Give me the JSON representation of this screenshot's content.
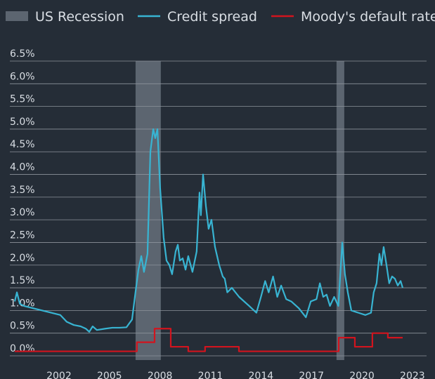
{
  "chart_data": {
    "type": "line",
    "xlim": [
      1999.08,
      2023.84
    ],
    "xticks": [
      2002,
      2005,
      2008,
      2011,
      2014,
      2017,
      2020,
      2023
    ],
    "ylim": [
      0,
      6.5
    ],
    "yticks": [
      {
        "value": 0,
        "label": "0.0%"
      },
      {
        "value": 0.5,
        "label": "0.5%"
      },
      {
        "value": 1,
        "label": "1.0%"
      },
      {
        "value": 1.5,
        "label": "1.5%"
      },
      {
        "value": 2,
        "label": "2.0%"
      },
      {
        "value": 2.5,
        "label": "2.5%"
      },
      {
        "value": 3,
        "label": "3.0%"
      },
      {
        "value": 3.5,
        "label": "3.5%"
      },
      {
        "value": 4,
        "label": "4.0%"
      },
      {
        "value": 4.5,
        "label": "4.5%"
      },
      {
        "value": 5,
        "label": "5.0%"
      },
      {
        "value": 5.5,
        "label": "5.5%"
      },
      {
        "value": 6,
        "label": "6.0%"
      },
      {
        "value": 6.5,
        "label": "6.5%"
      }
    ],
    "grid": true,
    "legend": "top",
    "bands": {
      "name": "US Recession",
      "color": "#5c6570",
      "ranges": [
        [
          2006.55,
          2008.05
        ],
        [
          2018.49,
          2018.95
        ]
      ]
    },
    "series": [
      {
        "name": "Credit spread",
        "color": "#38b4d2",
        "x": [
          1999.37,
          1999.5,
          1999.67,
          1999.92,
          2002.08,
          2002.46,
          2002.88,
          2003.29,
          2003.59,
          2003.8,
          2004.0,
          2004.25,
          2004.76,
          2005.17,
          2005.59,
          2006.01,
          2006.34,
          2006.51,
          2006.72,
          2006.89,
          2007.05,
          2007.26,
          2007.43,
          2007.6,
          2007.72,
          2007.85,
          2008.01,
          2008.22,
          2008.39,
          2008.56,
          2008.72,
          2008.93,
          2009.06,
          2009.18,
          2009.35,
          2009.52,
          2009.68,
          2009.93,
          2010.18,
          2010.35,
          2010.43,
          2010.56,
          2010.73,
          2010.89,
          2011.06,
          2011.27,
          2011.52,
          2011.73,
          2011.85,
          2012.0,
          2012.27,
          2012.7,
          2013.3,
          2013.73,
          2014.0,
          2014.25,
          2014.46,
          2014.72,
          2014.97,
          2015.2,
          2015.5,
          2015.8,
          2016.25,
          2016.67,
          2016.96,
          2017.3,
          2017.5,
          2017.7,
          2017.9,
          2018.1,
          2018.35,
          2018.6,
          2018.83,
          2018.99,
          2019.16,
          2019.37,
          2019.79,
          2020.2,
          2020.54,
          2020.7,
          2020.87,
          2021.04,
          2021.16,
          2021.29,
          2021.46,
          2021.62,
          2021.79,
          2021.96,
          2022.13,
          2022.3,
          2022.42
        ],
        "values": [
          1.2,
          1.4,
          1.15,
          1.1,
          0.9,
          0.75,
          0.68,
          0.65,
          0.6,
          0.53,
          0.65,
          0.57,
          0.6,
          0.62,
          0.62,
          0.63,
          0.8,
          1.3,
          1.9,
          2.2,
          1.85,
          2.25,
          4.5,
          5.0,
          4.8,
          5.0,
          3.7,
          2.6,
          2.1,
          2.0,
          1.8,
          2.3,
          2.45,
          2.1,
          2.15,
          1.9,
          2.2,
          1.85,
          2.3,
          3.6,
          3.1,
          4.0,
          3.3,
          2.8,
          3.0,
          2.4,
          2.0,
          1.75,
          1.7,
          1.4,
          1.5,
          1.3,
          1.1,
          0.95,
          1.3,
          1.65,
          1.4,
          1.75,
          1.3,
          1.55,
          1.25,
          1.2,
          1.05,
          0.85,
          1.2,
          1.25,
          1.6,
          1.3,
          1.35,
          1.1,
          1.3,
          1.1,
          2.5,
          1.8,
          1.4,
          1.0,
          0.95,
          0.9,
          0.95,
          1.4,
          1.6,
          2.25,
          2.0,
          2.4,
          2.0,
          1.6,
          1.75,
          1.7,
          1.55,
          1.65,
          1.5
        ]
      },
      {
        "name": "Moody's default rate",
        "color": "#d2141e",
        "x": [
          1999.37,
          2006.63,
          2006.63,
          2007.68,
          2007.68,
          2008.64,
          2008.64,
          2009.68,
          2009.68,
          2010.68,
          2010.68,
          2012.69,
          2012.69,
          2018.62,
          2018.62,
          2019.58,
          2019.58,
          2020.62,
          2020.62,
          2021.54,
          2021.54,
          2022.42
        ],
        "values": [
          0.1,
          0.1,
          0.3,
          0.3,
          0.6,
          0.6,
          0.2,
          0.2,
          0.1,
          0.1,
          0.2,
          0.2,
          0.1,
          0.1,
          0.4,
          0.4,
          0.2,
          0.2,
          0.5,
          0.5,
          0.4,
          0.4
        ]
      }
    ]
  }
}
